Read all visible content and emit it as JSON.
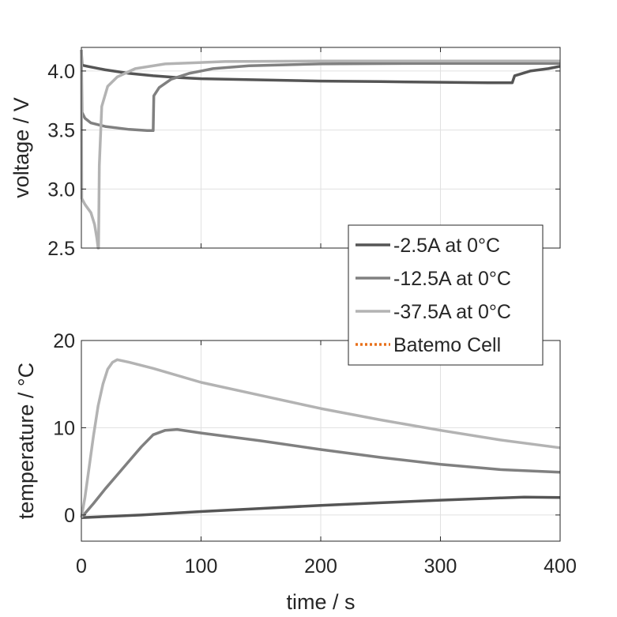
{
  "colors": {
    "series_dark": "#555555",
    "series_mid": "#808080",
    "series_light": "#b3b3b3",
    "batemo": "#e8701a",
    "axis": "#262626",
    "grid": "#e1e1e1"
  },
  "chart_data": [
    {
      "type": "line",
      "ylabel": "voltage / V",
      "xlim": [
        0,
        400
      ],
      "ylim": [
        2.5,
        4.2
      ],
      "x_ticks": [
        0,
        100,
        200,
        300,
        400
      ],
      "y_ticks": [
        2.5,
        3.0,
        3.5,
        4.0
      ],
      "y_tick_labels": [
        "2.5",
        "3.0",
        "3.5",
        "4.0"
      ],
      "grid": true,
      "legend": {
        "placement": "lower-right",
        "entries": [
          {
            "label": "-2.5A at 0°C",
            "style": "solid",
            "color": "#555555"
          },
          {
            "label": "-12.5A at 0°C",
            "style": "solid",
            "color": "#808080"
          },
          {
            "label": "-37.5A at 0°C",
            "style": "solid",
            "color": "#b3b3b3"
          },
          {
            "label": "Batemo Cell",
            "style": "dotted",
            "color": "#e8701a"
          }
        ]
      },
      "series": [
        {
          "name": "-2.5A at 0°C",
          "color": "#555555",
          "points": [
            [
              0,
              4.18
            ],
            [
              0.5,
              4.05
            ],
            [
              5,
              4.04
            ],
            [
              20,
              4.01
            ],
            [
              40,
              3.98
            ],
            [
              60,
              3.96
            ],
            [
              80,
              3.945
            ],
            [
              100,
              3.935
            ],
            [
              150,
              3.925
            ],
            [
              200,
              3.915
            ],
            [
              250,
              3.91
            ],
            [
              300,
              3.905
            ],
            [
              340,
              3.9
            ],
            [
              360,
              3.9
            ],
            [
              362,
              3.96
            ],
            [
              375,
              4.0
            ],
            [
              390,
              4.02
            ],
            [
              400,
              4.04
            ]
          ]
        },
        {
          "name": "-12.5A at 0°C",
          "color": "#808080",
          "points": [
            [
              0,
              4.18
            ],
            [
              0.5,
              3.65
            ],
            [
              3,
              3.6
            ],
            [
              8,
              3.56
            ],
            [
              20,
              3.53
            ],
            [
              40,
              3.505
            ],
            [
              55,
              3.495
            ],
            [
              60,
              3.495
            ],
            [
              60.5,
              3.79
            ],
            [
              65,
              3.86
            ],
            [
              75,
              3.93
            ],
            [
              90,
              3.98
            ],
            [
              110,
              4.02
            ],
            [
              140,
              4.045
            ],
            [
              200,
              4.06
            ],
            [
              300,
              4.065
            ],
            [
              400,
              4.065
            ]
          ]
        },
        {
          "name": "-37.5A at 0°C",
          "color": "#b3b3b3",
          "points": [
            [
              0,
              4.18
            ],
            [
              0.3,
              2.92
            ],
            [
              3,
              2.87
            ],
            [
              8,
              2.8
            ],
            [
              11,
              2.7
            ],
            [
              13,
              2.58
            ],
            [
              14,
              2.5
            ],
            [
              14.3,
              2.5
            ],
            [
              15,
              3.2
            ],
            [
              17,
              3.7
            ],
            [
              22,
              3.87
            ],
            [
              30,
              3.95
            ],
            [
              45,
              4.02
            ],
            [
              70,
              4.06
            ],
            [
              120,
              4.08
            ],
            [
              200,
              4.085
            ],
            [
              300,
              4.085
            ],
            [
              400,
              4.085
            ]
          ]
        }
      ]
    },
    {
      "type": "line",
      "xlabel": "time / s",
      "ylabel": "temperature / °C",
      "xlim": [
        0,
        400
      ],
      "ylim": [
        -3,
        20
      ],
      "x_ticks": [
        0,
        100,
        200,
        300,
        400
      ],
      "x_tick_labels": [
        "0",
        "100",
        "200",
        "300",
        "400"
      ],
      "y_ticks": [
        0,
        10,
        20
      ],
      "y_tick_labels": [
        "0",
        "10",
        "20"
      ],
      "grid": true,
      "series": [
        {
          "name": "-2.5A at 0°C",
          "color": "#555555",
          "points": [
            [
              0,
              -0.3
            ],
            [
              50,
              0
            ],
            [
              100,
              0.4
            ],
            [
              150,
              0.75
            ],
            [
              200,
              1.1
            ],
            [
              250,
              1.4
            ],
            [
              300,
              1.7
            ],
            [
              350,
              1.95
            ],
            [
              370,
              2.05
            ],
            [
              400,
              2.0
            ]
          ]
        },
        {
          "name": "-12.5A at 0°C",
          "color": "#808080",
          "points": [
            [
              0,
              -0.3
            ],
            [
              10,
              1.3
            ],
            [
              20,
              3.0
            ],
            [
              30,
              4.6
            ],
            [
              40,
              6.2
            ],
            [
              50,
              7.8
            ],
            [
              60,
              9.2
            ],
            [
              70,
              9.7
            ],
            [
              80,
              9.8
            ],
            [
              100,
              9.4
            ],
            [
              150,
              8.5
            ],
            [
              200,
              7.5
            ],
            [
              250,
              6.6
            ],
            [
              300,
              5.8
            ],
            [
              350,
              5.2
            ],
            [
              400,
              4.9
            ]
          ]
        },
        {
          "name": "-37.5A at 0°C",
          "color": "#b3b3b3",
          "points": [
            [
              0,
              -0.3
            ],
            [
              3,
              2
            ],
            [
              6,
              5
            ],
            [
              10,
              9
            ],
            [
              14,
              12.5
            ],
            [
              18,
              15
            ],
            [
              22,
              16.7
            ],
            [
              26,
              17.5
            ],
            [
              30,
              17.8
            ],
            [
              40,
              17.5
            ],
            [
              60,
              16.8
            ],
            [
              100,
              15.2
            ],
            [
              150,
              13.7
            ],
            [
              200,
              12.2
            ],
            [
              250,
              10.9
            ],
            [
              300,
              9.7
            ],
            [
              350,
              8.6
            ],
            [
              400,
              7.7
            ]
          ]
        }
      ]
    }
  ]
}
